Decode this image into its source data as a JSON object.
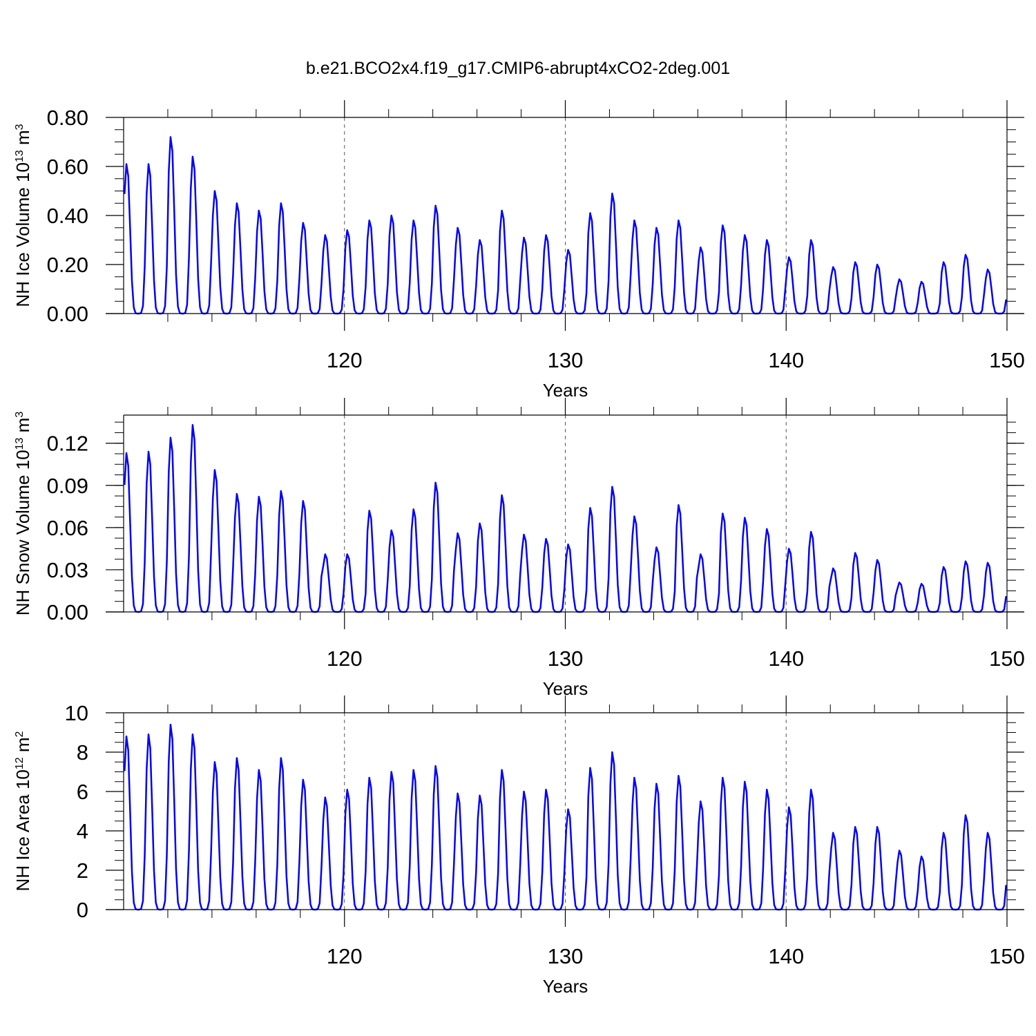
{
  "title": "b.e21.BCO2x4.f19_g17.CMIP6-abrupt4xCO2-2deg.001",
  "colors": {
    "line": "#0000ff",
    "axis": "#000000",
    "grid": "#555555"
  },
  "chart_data": [
    {
      "id": "ice-volume",
      "type": "line",
      "xlabel": "Years",
      "ylabel": {
        "name": "NH Ice Volume 10",
        "exp": "13",
        "unit": " m",
        "unit_exp": "3"
      },
      "xlim": [
        110,
        150
      ],
      "ylim": [
        0,
        0.8
      ],
      "y_ticks": [
        0,
        0.2,
        0.4,
        0.6,
        0.8
      ],
      "y_tick_labels": [
        "0.00",
        "0.20",
        "0.40",
        "0.60",
        "0.80"
      ],
      "x_ticks": [
        120,
        130,
        140,
        150
      ],
      "x_tick_labels": [
        "120",
        "130",
        "140",
        "150"
      ],
      "series_start_year": 110,
      "annual_peaks": [
        0.61,
        0.61,
        0.72,
        0.64,
        0.5,
        0.45,
        0.42,
        0.45,
        0.37,
        0.32,
        0.34,
        0.38,
        0.4,
        0.38,
        0.44,
        0.35,
        0.3,
        0.42,
        0.31,
        0.32,
        0.26,
        0.41,
        0.49,
        0.38,
        0.35,
        0.38,
        0.27,
        0.36,
        0.32,
        0.3,
        0.23,
        0.3,
        0.19,
        0.21,
        0.2,
        0.14,
        0.13,
        0.21,
        0.24,
        0.18
      ]
    },
    {
      "id": "snow-volume",
      "type": "line",
      "xlabel": "Years",
      "ylabel": {
        "name": "NH Snow Volume 10",
        "exp": "13",
        "unit": " m",
        "unit_exp": "3"
      },
      "xlim": [
        110,
        150
      ],
      "ylim": [
        0,
        0.14
      ],
      "y_ticks": [
        0,
        0.03,
        0.06,
        0.09,
        0.12
      ],
      "y_tick_labels": [
        "0.00",
        "0.03",
        "0.06",
        "0.09",
        "0.12"
      ],
      "x_ticks": [
        120,
        130,
        140,
        150
      ],
      "x_tick_labels": [
        "120",
        "130",
        "140",
        "150"
      ],
      "series_start_year": 110,
      "annual_peaks": [
        0.113,
        0.114,
        0.124,
        0.133,
        0.101,
        0.084,
        0.082,
        0.086,
        0.079,
        0.041,
        0.041,
        0.072,
        0.058,
        0.073,
        0.092,
        0.056,
        0.063,
        0.083,
        0.055,
        0.052,
        0.048,
        0.074,
        0.089,
        0.068,
        0.046,
        0.076,
        0.041,
        0.07,
        0.067,
        0.059,
        0.045,
        0.057,
        0.031,
        0.042,
        0.037,
        0.021,
        0.02,
        0.032,
        0.036,
        0.035
      ]
    },
    {
      "id": "ice-area",
      "type": "line",
      "xlabel": "Years",
      "ylabel": {
        "name": "NH Ice Area 10",
        "exp": "12",
        "unit": " m",
        "unit_exp": "2"
      },
      "xlim": [
        110,
        150
      ],
      "ylim": [
        0,
        10
      ],
      "y_ticks": [
        0,
        2,
        4,
        6,
        8,
        10
      ],
      "y_tick_labels": [
        "0",
        "2",
        "4",
        "6",
        "8",
        "10"
      ],
      "x_ticks": [
        120,
        130,
        140,
        150
      ],
      "x_tick_labels": [
        "120",
        "130",
        "140",
        "150"
      ],
      "series_start_year": 110,
      "annual_peaks": [
        8.8,
        8.9,
        9.4,
        8.9,
        7.5,
        7.7,
        7.1,
        7.7,
        6.6,
        5.7,
        6.1,
        6.7,
        7.0,
        7.1,
        7.3,
        5.9,
        5.8,
        7.1,
        6.0,
        6.1,
        5.1,
        7.2,
        8.0,
        6.7,
        6.4,
        6.8,
        5.5,
        6.7,
        6.5,
        6.1,
        5.2,
        6.1,
        3.9,
        4.2,
        4.2,
        3.0,
        2.7,
        3.9,
        4.8,
        3.9
      ]
    }
  ]
}
